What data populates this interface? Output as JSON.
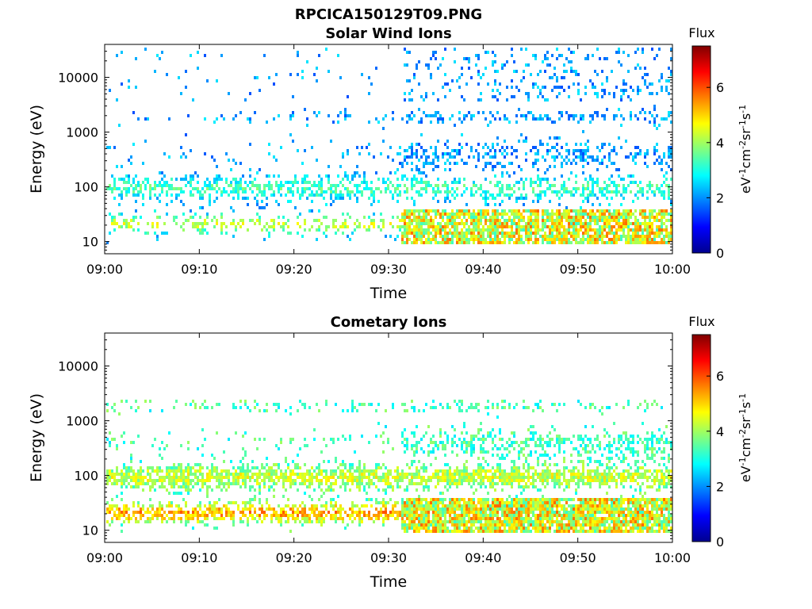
{
  "figure_title": "RPCICA150129T09.PNG",
  "colorbar_title": "Flux",
  "colorbar_label": "eV-1cm-2sr-1s-1",
  "chart_data": [
    {
      "type": "heatmap",
      "title": "Solar Wind Ions",
      "xlabel": "Time",
      "ylabel": "Energy (eV)",
      "x_ticks": [
        "09:00",
        "09:10",
        "09:20",
        "09:30",
        "09:40",
        "09:50",
        "10:00"
      ],
      "xlim": [
        "09:00",
        "10:00"
      ],
      "y_ticks": [
        "10",
        "100",
        "1000",
        "10000"
      ],
      "ylim": [
        6,
        40000
      ],
      "y_scale": "log",
      "colorbar": {
        "title": "Flux",
        "ticks": [
          "0",
          "2",
          "4",
          "6"
        ],
        "range": [
          0,
          7.5
        ],
        "colormap": "jet"
      },
      "grid": false
    },
    {
      "type": "heatmap",
      "title": "Cometary Ions",
      "xlabel": "Time",
      "ylabel": "Energy (eV)",
      "x_ticks": [
        "09:00",
        "09:10",
        "09:20",
        "09:30",
        "09:40",
        "09:50",
        "10:00"
      ],
      "xlim": [
        "09:00",
        "10:00"
      ],
      "y_ticks": [
        "10",
        "100",
        "1000",
        "10000"
      ],
      "ylim": [
        6,
        40000
      ],
      "y_scale": "log",
      "colorbar": {
        "title": "Flux",
        "ticks": [
          "0",
          "2",
          "4",
          "6"
        ],
        "range": [
          0,
          7.5
        ],
        "colormap": "jet"
      },
      "grid": false
    }
  ]
}
